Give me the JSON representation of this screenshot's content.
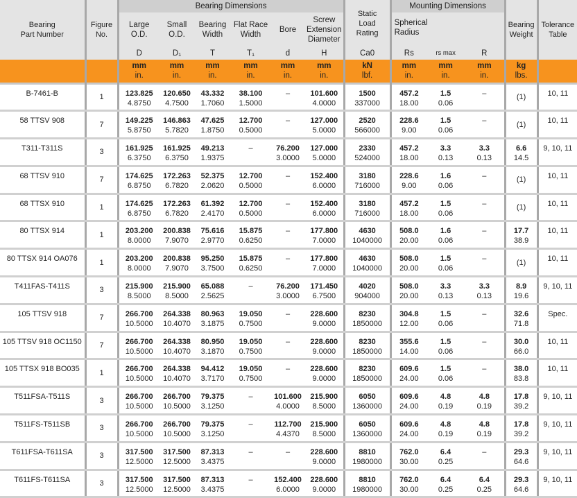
{
  "header": {
    "part": "Bearing\nPart Number",
    "figure": "Figure\nNo.",
    "bearing_dimensions": "Bearing Dimensions",
    "mounting_dimensions": "Mounting Dimensions",
    "cols": [
      {
        "label": "Large\nO.D.",
        "sym": "D",
        "unit": [
          "mm",
          "in."
        ]
      },
      {
        "label": "Small\nO.D.",
        "sym": "D₁",
        "unit": [
          "mm",
          "in."
        ]
      },
      {
        "label": "Bearing\nWidth",
        "sym": "T",
        "unit": [
          "mm",
          "in."
        ]
      },
      {
        "label": "Flat Race\nWidth",
        "sym": "T₁",
        "unit": [
          "mm",
          "in."
        ]
      },
      {
        "label": "Bore",
        "sym": "d",
        "unit": [
          "mm",
          "in."
        ]
      },
      {
        "label": "Screw\nExtension\nDiameter",
        "sym": "H",
        "unit": [
          "mm",
          "in."
        ]
      },
      {
        "label": "Static\nLoad\nRating",
        "sym": "Ca0",
        "unit": [
          "kN",
          "lbf."
        ]
      },
      {
        "label": "Spherical\nRadius",
        "sym": "Rs",
        "unit": [
          "mm",
          "in."
        ]
      },
      {
        "label": "",
        "sym": "rs max",
        "unit": [
          "mm",
          "in."
        ]
      },
      {
        "label": "",
        "sym": "R",
        "unit": [
          "mm",
          "in."
        ]
      },
      {
        "label": "Bearing\nWeight",
        "sym": "",
        "unit": [
          "kg",
          "lbs."
        ]
      },
      {
        "label": "Tolerance\nTable",
        "sym": "",
        "unit": [
          "",
          ""
        ]
      }
    ]
  },
  "rows": [
    {
      "part": "B-7461-B",
      "fig": "1",
      "v": [
        [
          "123.825",
          "4.8750"
        ],
        [
          "120.650",
          "4.7500"
        ],
        [
          "43.332",
          "1.7060"
        ],
        [
          "38.100",
          "1.5000"
        ],
        "–",
        [
          "101.600",
          "4.0000"
        ],
        [
          "1500",
          "337000"
        ],
        [
          "457.2",
          "18.00"
        ],
        [
          "1.5",
          "0.06"
        ],
        "–",
        "(1)",
        "10, 11"
      ]
    },
    {
      "part": "58 TTSV 908",
      "fig": "7",
      "v": [
        [
          "149.225",
          "5.8750"
        ],
        [
          "146.863",
          "5.7820"
        ],
        [
          "47.625",
          "1.8750"
        ],
        [
          "12.700",
          "0.5000"
        ],
        "–",
        [
          "127.000",
          "5.0000"
        ],
        [
          "2520",
          "566000"
        ],
        [
          "228.6",
          "9.00"
        ],
        [
          "1.5",
          "0.06"
        ],
        "–",
        "(1)",
        "10, 11"
      ]
    },
    {
      "part": "T311-T311S",
      "fig": "3",
      "v": [
        [
          "161.925",
          "6.3750"
        ],
        [
          "161.925",
          "6.3750"
        ],
        [
          "49.213",
          "1.9375"
        ],
        "–",
        [
          "76.200",
          "3.0000"
        ],
        [
          "127.000",
          "5.0000"
        ],
        [
          "2330",
          "524000"
        ],
        [
          "457.2",
          "18.00"
        ],
        [
          "3.3",
          "0.13"
        ],
        [
          "3.3",
          "0.13"
        ],
        [
          "6.6",
          "14.5"
        ],
        "9, 10, 11"
      ]
    },
    {
      "part": "68 TTSV 910",
      "fig": "7",
      "v": [
        [
          "174.625",
          "6.8750"
        ],
        [
          "172.263",
          "6.7820"
        ],
        [
          "52.375",
          "2.0620"
        ],
        [
          "12.700",
          "0.5000"
        ],
        "–",
        [
          "152.400",
          "6.0000"
        ],
        [
          "3180",
          "716000"
        ],
        [
          "228.6",
          "9.00"
        ],
        [
          "1.6",
          "0.06"
        ],
        "–",
        "(1)",
        "10, 11"
      ]
    },
    {
      "part": "68 TTSX 910",
      "fig": "1",
      "v": [
        [
          "174.625",
          "6.8750"
        ],
        [
          "172.263",
          "6.7820"
        ],
        [
          "61.392",
          "2.4170"
        ],
        [
          "12.700",
          "0.5000"
        ],
        "–",
        [
          "152.400",
          "6.0000"
        ],
        [
          "3180",
          "716000"
        ],
        [
          "457.2",
          "18.00"
        ],
        [
          "1.5",
          "0.06"
        ],
        "–",
        "(1)",
        "10, 11"
      ]
    },
    {
      "part": "80 TTSX 914",
      "fig": "1",
      "v": [
        [
          "203.200",
          "8.0000"
        ],
        [
          "200.838",
          "7.9070"
        ],
        [
          "75.616",
          "2.9770"
        ],
        [
          "15.875",
          "0.6250"
        ],
        "–",
        [
          "177.800",
          "7.0000"
        ],
        [
          "4630",
          "1040000"
        ],
        [
          "508.0",
          "20.00"
        ],
        [
          "1.6",
          "0.06"
        ],
        "–",
        [
          "17.7",
          "38.9"
        ],
        "10, 11"
      ]
    },
    {
      "part": "80 TTSX 914 OA076",
      "fig": "1",
      "v": [
        [
          "203.200",
          "8.0000"
        ],
        [
          "200.838",
          "7.9070"
        ],
        [
          "95.250",
          "3.7500"
        ],
        [
          "15.875",
          "0.6250"
        ],
        "–",
        [
          "177.800",
          "7.0000"
        ],
        [
          "4630",
          "1040000"
        ],
        [
          "508.0",
          "20.00"
        ],
        [
          "1.5",
          "0.06"
        ],
        "–",
        "(1)",
        "10, 11"
      ]
    },
    {
      "part": "T411FAS-T411S",
      "fig": "3",
      "v": [
        [
          "215.900",
          "8.5000"
        ],
        [
          "215.900",
          "8.5000"
        ],
        [
          "65.088",
          "2.5625"
        ],
        "–",
        [
          "76.200",
          "3.0000"
        ],
        [
          "171.450",
          "6.7500"
        ],
        [
          "4020",
          "904000"
        ],
        [
          "508.0",
          "20.00"
        ],
        [
          "3.3",
          "0.13"
        ],
        [
          "3.3",
          "0.13"
        ],
        [
          "8.9",
          "19.6"
        ],
        "9, 10, 11"
      ]
    },
    {
      "part": "105 TTSV 918",
      "fig": "7",
      "v": [
        [
          "266.700",
          "10.5000"
        ],
        [
          "264.338",
          "10.4070"
        ],
        [
          "80.963",
          "3.1875"
        ],
        [
          "19.050",
          "0.7500"
        ],
        "–",
        [
          "228.600",
          "9.0000"
        ],
        [
          "8230",
          "1850000"
        ],
        [
          "304.8",
          "12.00"
        ],
        [
          "1.5",
          "0.06"
        ],
        "–",
        [
          "32.6",
          "71.8"
        ],
        "Spec."
      ]
    },
    {
      "part": "105 TTSV 918 OC1150",
      "fig": "7",
      "v": [
        [
          "266.700",
          "10.5000"
        ],
        [
          "264.338",
          "10.4070"
        ],
        [
          "80.950",
          "3.1870"
        ],
        [
          "19.050",
          "0.7500"
        ],
        "–",
        [
          "228.600",
          "9.0000"
        ],
        [
          "8230",
          "1850000"
        ],
        [
          "355.6",
          "14.00"
        ],
        [
          "1.5",
          "0.06"
        ],
        "–",
        [
          "30.0",
          "66.0"
        ],
        "10, 11"
      ]
    },
    {
      "part": "105 TTSX 918 BO035",
      "fig": "1",
      "v": [
        [
          "266.700",
          "10.5000"
        ],
        [
          "264.338",
          "10.4070"
        ],
        [
          "94.412",
          "3.7170"
        ],
        [
          "19.050",
          "0.7500"
        ],
        "–",
        [
          "228.600",
          "9.0000"
        ],
        [
          "8230",
          "1850000"
        ],
        [
          "609.6",
          "24.00"
        ],
        [
          "1.5",
          "0.06"
        ],
        "–",
        [
          "38.0",
          "83.8"
        ],
        "10, 11"
      ]
    },
    {
      "part": "T511FSA-T511S",
      "fig": "3",
      "v": [
        [
          "266.700",
          "10.5000"
        ],
        [
          "266.700",
          "10.5000"
        ],
        [
          "79.375",
          "3.1250"
        ],
        "–",
        [
          "101.600",
          "4.0000"
        ],
        [
          "215.900",
          "8.5000"
        ],
        [
          "6050",
          "1360000"
        ],
        [
          "609.6",
          "24.00"
        ],
        [
          "4.8",
          "0.19"
        ],
        [
          "4.8",
          "0.19"
        ],
        [
          "17.8",
          "39.2"
        ],
        "9, 10, 11"
      ]
    },
    {
      "part": "T511FS-T511SB",
      "fig": "3",
      "v": [
        [
          "266.700",
          "10.5000"
        ],
        [
          "266.700",
          "10.5000"
        ],
        [
          "79.375",
          "3.1250"
        ],
        "–",
        [
          "112.700",
          "4.4370"
        ],
        [
          "215.900",
          "8.5000"
        ],
        [
          "6050",
          "1360000"
        ],
        [
          "609.6",
          "24.00"
        ],
        [
          "4.8",
          "0.19"
        ],
        [
          "4.8",
          "0.19"
        ],
        [
          "17.8",
          "39.2"
        ],
        "9, 10, 11"
      ]
    },
    {
      "part": "T611FSA-T611SA",
      "fig": "3",
      "v": [
        [
          "317.500",
          "12.5000"
        ],
        [
          "317.500",
          "12.5000"
        ],
        [
          "87.313",
          "3.4375"
        ],
        "–",
        "–",
        [
          "228.600",
          "9.0000"
        ],
        [
          "8810",
          "1980000"
        ],
        [
          "762.0",
          "30.00"
        ],
        [
          "6.4",
          "0.25"
        ],
        "–",
        [
          "29.3",
          "64.6"
        ],
        "9, 10, 11"
      ]
    },
    {
      "part": "T611FS-T611SA",
      "fig": "3",
      "v": [
        [
          "317.500",
          "12.5000"
        ],
        [
          "317.500",
          "12.5000"
        ],
        [
          "87.313",
          "3.4375"
        ],
        "–",
        [
          "152.400",
          "6.0000"
        ],
        [
          "228.600",
          "9.0000"
        ],
        [
          "8810",
          "1980000"
        ],
        [
          "762.0",
          "30.00"
        ],
        [
          "6.4",
          "0.25"
        ],
        [
          "6.4",
          "0.25"
        ],
        [
          "29.3",
          "64.6"
        ],
        "9, 10, 11"
      ]
    }
  ]
}
